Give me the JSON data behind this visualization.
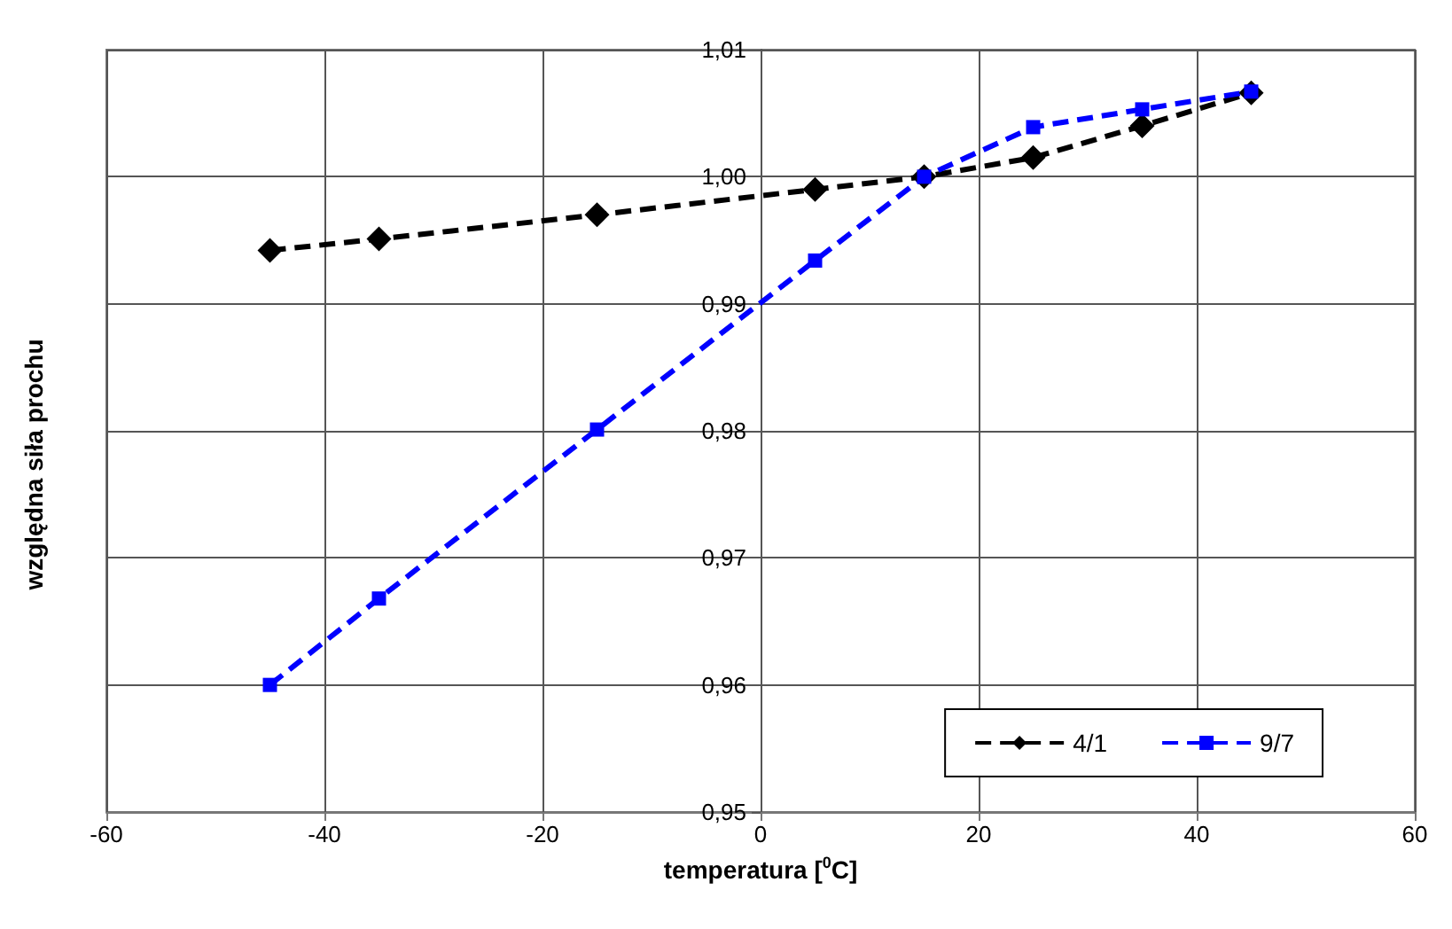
{
  "chart_data": {
    "type": "line",
    "xlabel": "temperatura [$^{0}$C]",
    "ylabel": "względna siła prochu",
    "x": [
      -45,
      -35,
      -15,
      5,
      15,
      25,
      35,
      45
    ],
    "series": [
      {
        "name": "4/1",
        "color": "#000000",
        "marker": "diamond",
        "line_style": "dashed",
        "values": [
          0.9942,
          0.9951,
          0.997,
          0.999,
          1.0,
          1.0015,
          1.004,
          1.0066
        ]
      },
      {
        "name": "9/7",
        "color": "#0000ff",
        "marker": "square",
        "line_style": "dashed",
        "values": [
          0.96,
          0.9668,
          0.9801,
          0.9934,
          1.0,
          1.0039,
          1.0053,
          1.0067
        ]
      }
    ],
    "xlim": [
      -60,
      60
    ],
    "xticks": [
      -60,
      -40,
      -20,
      0,
      20,
      40,
      60
    ],
    "ylim": [
      0.95,
      1.01
    ],
    "yticks": [
      {
        "value": 0.95,
        "label": "0,95"
      },
      {
        "value": 0.96,
        "label": "0,96"
      },
      {
        "value": 0.97,
        "label": "0,97"
      },
      {
        "value": 0.98,
        "label": "0,98"
      },
      {
        "value": 0.99,
        "label": "0,99"
      },
      {
        "value": 1.0,
        "label": "1,00"
      },
      {
        "value": 1.01,
        "label": "1,01"
      }
    ],
    "grid": true,
    "legend": "bottom right"
  }
}
